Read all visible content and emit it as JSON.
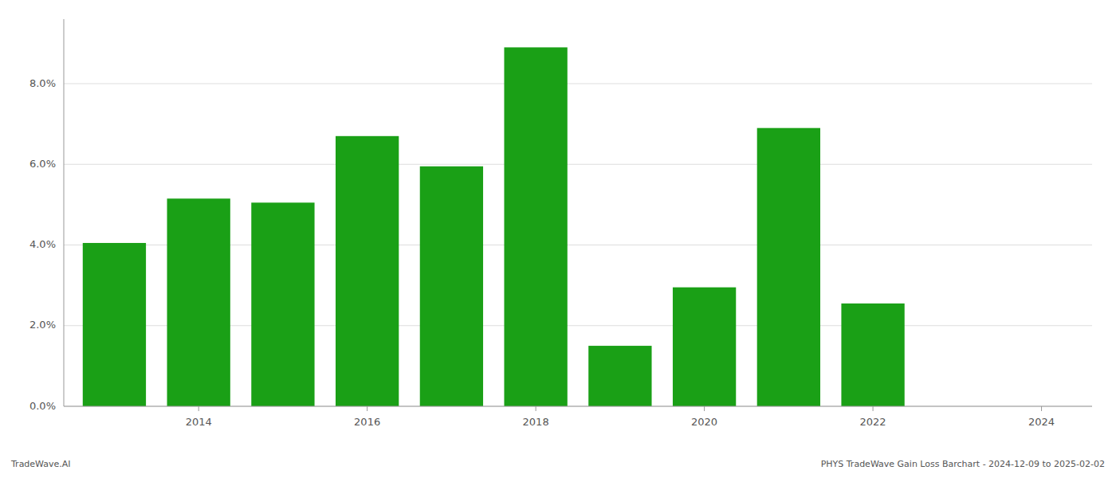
{
  "chart_data": {
    "type": "bar",
    "x": [
      2013,
      2014,
      2015,
      2016,
      2017,
      2018,
      2019,
      2020,
      2021,
      2022,
      2023
    ],
    "values": [
      0.0405,
      0.0515,
      0.0505,
      0.067,
      0.0595,
      0.089,
      0.015,
      0.0295,
      0.069,
      0.0255,
      0.0
    ],
    "color": "#1aa016",
    "xlim": [
      2012.4,
      2024.6
    ],
    "xticks": [
      2014,
      2016,
      2018,
      2020,
      2022,
      2024
    ],
    "ylim": [
      0,
      0.096
    ],
    "yticks": [
      {
        "value": 0.0,
        "label": "0.0%"
      },
      {
        "value": 0.02,
        "label": "2.0%"
      },
      {
        "value": 0.04,
        "label": "4.0%"
      },
      {
        "value": 0.06,
        "label": "6.0%"
      },
      {
        "value": 0.08,
        "label": "8.0%"
      }
    ],
    "grid": true,
    "annotations": [
      "TradeWave.AI",
      "PHYS TradeWave Gain Loss Barchart - 2024-12-09 to 2025-02-02"
    ]
  }
}
